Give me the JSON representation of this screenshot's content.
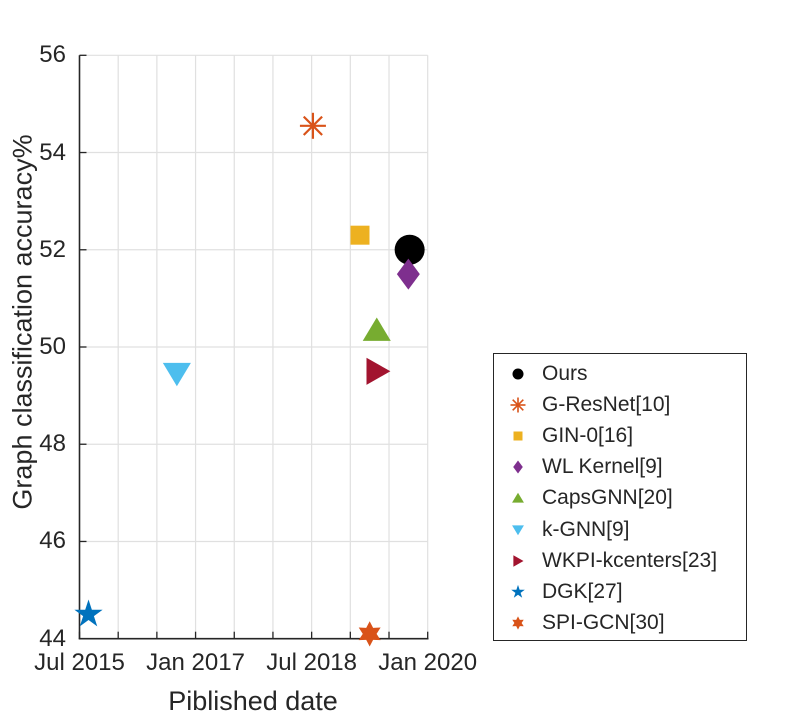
{
  "figure": {
    "background": "#ffffff",
    "axis_color": "#262626",
    "grid_color": "#e0e0e0",
    "text_color": "#262626"
  },
  "chart_data": {
    "type": "scatter",
    "title": "",
    "xlabel": "Piblished date",
    "ylabel": "Graph classification accuracy%",
    "grid": true,
    "legend_position": "outside-right-bottom",
    "x_axis": {
      "kind": "date",
      "unit": "months_since_Jul_2015",
      "lim_months": [
        0,
        54
      ],
      "grid_every_months": 6,
      "major_ticks": [
        {
          "months": 0,
          "label": "Jul 2015"
        },
        {
          "months": 18,
          "label": "Jan 2017"
        },
        {
          "months": 36,
          "label": "Jul 2018"
        },
        {
          "months": 54,
          "label": "Jan 2020"
        }
      ]
    },
    "y_axis": {
      "lim": [
        44,
        56
      ],
      "tick_step": 2,
      "ticks": [
        44,
        46,
        48,
        50,
        52,
        54,
        56
      ]
    },
    "series": [
      {
        "name": "Ours",
        "marker": "circle",
        "color": "#000000",
        "date": "Oct 2019",
        "x_months": 51.2,
        "accuracy": 52.0,
        "size": 30
      },
      {
        "name": "G-ResNet[10]",
        "marker": "asterisk",
        "color": "#D95319",
        "date": "Jul 2018",
        "x_months": 36.2,
        "accuracy": 54.55,
        "size": 26
      },
      {
        "name": "GIN-0[16]",
        "marker": "square",
        "color": "#EDB120",
        "date": "Feb 2019",
        "x_months": 43.5,
        "accuracy": 52.3,
        "size": 19
      },
      {
        "name": "WL Kernel[9]",
        "marker": "diamond",
        "color": "#7E2F8E",
        "date": "Oct 2019",
        "x_months": 51.0,
        "accuracy": 51.5,
        "size": 31
      },
      {
        "name": "CapsGNN[20]",
        "marker": "triangle-up",
        "color": "#77AC30",
        "date": "May 2019",
        "x_months": 46.1,
        "accuracy": 50.35,
        "size": 26
      },
      {
        "name": "k-GNN[9]",
        "marker": "triangle-down",
        "color": "#4DBEEE",
        "date": "Oct 2016",
        "x_months": 15.1,
        "accuracy": 49.45,
        "size": 26
      },
      {
        "name": "WKPI-kcenters[23]",
        "marker": "triangle-right",
        "color": "#A2142F",
        "date": "May 2019",
        "x_months": 46.2,
        "accuracy": 49.5,
        "size": 26
      },
      {
        "name": "DGK[27]",
        "marker": "star5",
        "color": "#0072BD",
        "date": "Aug 2015",
        "x_months": 1.4,
        "accuracy": 44.5,
        "size": 27
      },
      {
        "name": "SPI-GCN[30]",
        "marker": "hexagram",
        "color": "#D95319",
        "date": "Apr 2019",
        "x_months": 45.0,
        "accuracy": 44.1,
        "size": 23
      }
    ]
  }
}
